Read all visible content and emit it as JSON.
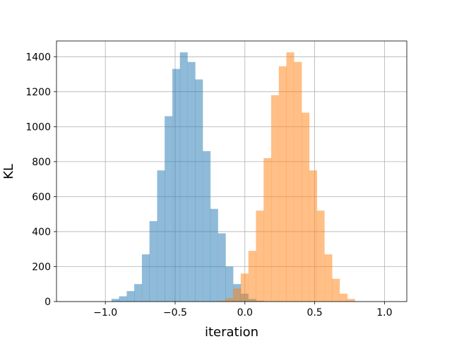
{
  "chart_data": {
    "type": "bar",
    "subtype": "histogram",
    "xlabel": "iteration",
    "ylabel": "KL",
    "xlim": [
      -1.35,
      1.16
    ],
    "ylim": [
      0,
      1490
    ],
    "x_ticks": [
      -1.0,
      -0.5,
      0.0,
      0.5,
      1.0
    ],
    "x_tick_labels": [
      "−1.0",
      "−0.5",
      "0.0",
      "0.5",
      "1.0"
    ],
    "y_ticks": [
      0,
      200,
      400,
      600,
      800,
      1000,
      1200,
      1400
    ],
    "y_tick_labels": [
      "0",
      "200",
      "400",
      "600",
      "800",
      "1000",
      "1200",
      "1400"
    ],
    "grid": true,
    "series": [
      {
        "color": "#1f77b4",
        "opacity": 0.5,
        "bin_width": 0.0545,
        "bins_start": [
          -0.956,
          -0.902,
          -0.847,
          -0.793,
          -0.738,
          -0.684,
          -0.629,
          -0.575,
          -0.52,
          -0.466,
          -0.411,
          -0.357,
          -0.302,
          -0.248,
          -0.193,
          -0.139,
          -0.084,
          -0.03,
          0.025,
          0.079
        ],
        "values": [
          15,
          30,
          60,
          100,
          270,
          460,
          750,
          1060,
          1330,
          1425,
          1370,
          1270,
          860,
          530,
          390,
          200,
          100,
          45,
          15,
          5
        ]
      },
      {
        "color": "#ff7f0e",
        "opacity": 0.5,
        "bin_width": 0.0545,
        "bins_start": [
          -0.193,
          -0.139,
          -0.084,
          -0.03,
          0.025,
          0.079,
          0.134,
          0.188,
          0.243,
          0.297,
          0.352,
          0.406,
          0.461,
          0.515,
          0.57,
          0.624,
          0.679,
          0.733
        ],
        "values": [
          5,
          20,
          75,
          160,
          290,
          520,
          820,
          1180,
          1345,
          1425,
          1370,
          1080,
          750,
          520,
          270,
          130,
          45,
          15
        ]
      }
    ]
  }
}
